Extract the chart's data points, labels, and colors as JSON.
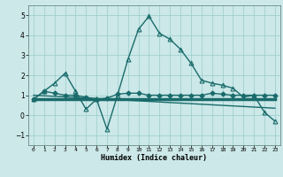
{
  "xlabel": "Humidex (Indice chaleur)",
  "xlim": [
    -0.5,
    23.5
  ],
  "ylim": [
    -1.5,
    5.5
  ],
  "yticks": [
    -1,
    0,
    1,
    2,
    3,
    4,
    5
  ],
  "xticks": [
    0,
    1,
    2,
    3,
    4,
    5,
    6,
    7,
    8,
    9,
    10,
    11,
    12,
    13,
    14,
    15,
    16,
    17,
    18,
    19,
    20,
    21,
    22,
    23
  ],
  "bg_color": "#cce8e8",
  "line_color": "#1a6b6b",
  "grid_color": "#99cccc",
  "series_main": {
    "x": [
      0,
      1,
      2,
      3,
      4,
      5,
      6,
      7,
      8,
      9,
      10,
      11,
      12,
      13,
      14,
      15,
      16,
      17,
      18,
      19,
      20,
      21,
      22,
      23
    ],
    "y": [
      0.8,
      1.2,
      1.6,
      2.1,
      1.2,
      0.3,
      0.8,
      -0.7,
      1.0,
      2.8,
      4.3,
      4.95,
      4.1,
      3.8,
      3.3,
      2.6,
      1.75,
      1.6,
      1.5,
      1.35,
      0.9,
      1.0,
      0.15,
      -0.3
    ],
    "marker": "^",
    "markersize": 3.5,
    "linewidth": 1.0
  },
  "series_diamond": {
    "x": [
      0,
      1,
      2,
      3,
      4,
      5,
      6,
      7,
      8,
      9,
      10,
      11,
      12,
      13,
      14,
      15,
      16,
      17,
      18,
      19,
      20,
      21,
      22,
      23
    ],
    "y": [
      0.8,
      1.2,
      1.1,
      1.0,
      1.0,
      0.9,
      0.8,
      0.85,
      1.05,
      1.1,
      1.1,
      1.0,
      1.0,
      1.0,
      1.0,
      1.0,
      1.0,
      1.1,
      1.05,
      1.0,
      1.0,
      1.0,
      1.0,
      1.0
    ],
    "marker": "D",
    "markersize": 2.5,
    "linewidth": 1.0
  },
  "series_thick": {
    "x": [
      0,
      23
    ],
    "y": [
      0.8,
      0.8
    ],
    "linewidth": 2.5
  },
  "series_diag": {
    "x": [
      0,
      23
    ],
    "y": [
      1.0,
      0.35
    ],
    "linewidth": 1.0
  }
}
